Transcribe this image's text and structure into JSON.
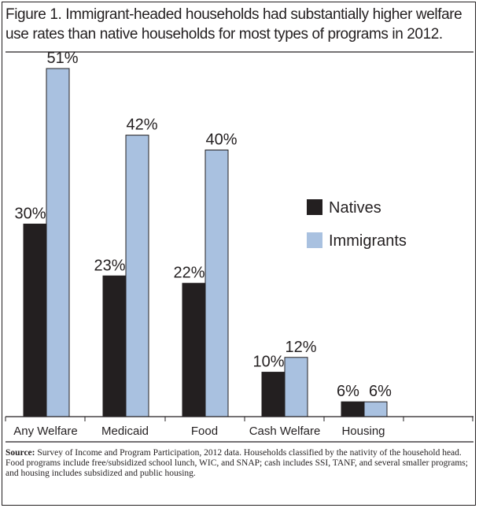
{
  "chart_data": {
    "type": "bar",
    "title": "Figure 1. Immigrant-headed households had substantially higher welfare use rates than native households for most types of programs in 2012.",
    "categories": [
      "Any Welfare",
      "Medicaid",
      "Food",
      "Cash Welfare",
      "Housing"
    ],
    "series": [
      {
        "name": "Natives",
        "color": "#231f20",
        "values": [
          30,
          23,
          22,
          10,
          6
        ],
        "labels": [
          "30%",
          "23%",
          "22%",
          "10%",
          "6%"
        ]
      },
      {
        "name": "Immigrants",
        "color": "#a9c1e0",
        "values": [
          51,
          42,
          40,
          12,
          6
        ],
        "labels": [
          "51%",
          "42%",
          "40%",
          "12%",
          "6%"
        ]
      }
    ],
    "xlabel": "",
    "ylabel": "",
    "ylim": [
      4,
      51
    ],
    "grid": false,
    "legend_position": "right-middle"
  },
  "note": {
    "source_label": "Source:",
    "source_text": " Survey of Income and Program Participation, 2012 data. Households classified by the nativity of the household head.",
    "detail_text": "Food programs include free/subsidized school lunch, WIC, and SNAP; cash includes SSI, TANF, and several smaller programs; and housing includes subsidized and public housing."
  }
}
